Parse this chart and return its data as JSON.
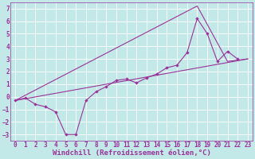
{
  "xlabel": "Windchill (Refroidissement éolien,°C)",
  "bg_color": "#c2e8e8",
  "line_color": "#993399",
  "grid_color": "#ffffff",
  "xlim": [
    -0.5,
    23.5
  ],
  "ylim": [
    -3.5,
    7.5
  ],
  "xticks": [
    0,
    1,
    2,
    3,
    4,
    5,
    6,
    7,
    8,
    9,
    10,
    11,
    12,
    13,
    14,
    15,
    16,
    17,
    18,
    19,
    20,
    21,
    22,
    23
  ],
  "yticks": [
    -3,
    -2,
    -1,
    0,
    1,
    2,
    3,
    4,
    5,
    6,
    7
  ],
  "line1_x": [
    0,
    1,
    2,
    3,
    4,
    5,
    6,
    7,
    8,
    9,
    10,
    11,
    12,
    13,
    14,
    15,
    16,
    17,
    18,
    19,
    20,
    21,
    22
  ],
  "line1_y": [
    -0.3,
    -0.1,
    -0.6,
    -0.8,
    -1.2,
    -3.0,
    -3.0,
    -0.3,
    0.4,
    0.8,
    1.3,
    1.4,
    1.1,
    1.5,
    1.8,
    2.3,
    2.5,
    3.5,
    6.2,
    5.0,
    2.8,
    3.6,
    3.0
  ],
  "line2_x": [
    0,
    23
  ],
  "line2_y": [
    -0.3,
    3.0
  ],
  "line3_x": [
    0,
    18,
    21,
    23
  ],
  "line3_y": [
    -0.3,
    7.2,
    2.8,
    3.0
  ],
  "tick_font_size": 5.5,
  "xlabel_font_size": 6.5
}
